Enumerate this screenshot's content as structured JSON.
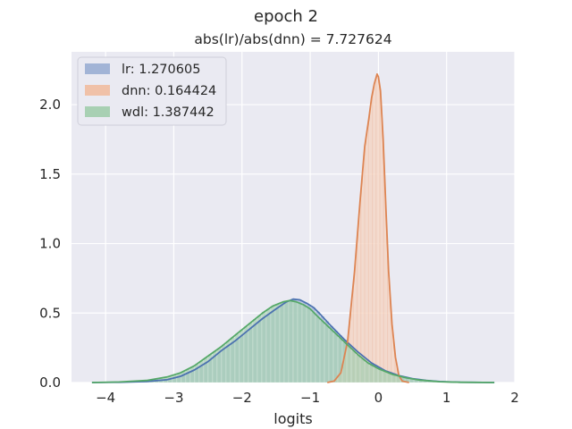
{
  "chart_data": {
    "type": "histogram",
    "title": "epoch 2",
    "subtitle": "abs(lr)/abs(dnn) = 7.727624",
    "xlabel": "logits",
    "ylabel": "",
    "xlim": [
      -4.5,
      2.0
    ],
    "ylim": [
      0,
      2.38
    ],
    "xticks": [
      -4,
      -3,
      -2,
      -1,
      0,
      1,
      2
    ],
    "xtick_labels": [
      "−4",
      "−3",
      "−2",
      "−1",
      "0",
      "1",
      "2"
    ],
    "yticks": [
      0.0,
      0.5,
      1.0,
      1.5,
      2.0
    ],
    "ytick_labels": [
      "0.0",
      "0.5",
      "1.0",
      "1.5",
      "2.0"
    ],
    "grid": true,
    "legend_position": "top-left",
    "series": [
      {
        "name": "lr: 1.270605",
        "kind": "kde",
        "color": "#4c72b0",
        "fill": "#a2b4d6",
        "points": [
          [
            -4.2,
            0.0
          ],
          [
            -3.8,
            0.002
          ],
          [
            -3.4,
            0.008
          ],
          [
            -3.1,
            0.02
          ],
          [
            -2.9,
            0.045
          ],
          [
            -2.7,
            0.09
          ],
          [
            -2.5,
            0.15
          ],
          [
            -2.3,
            0.23
          ],
          [
            -2.1,
            0.3
          ],
          [
            -1.9,
            0.38
          ],
          [
            -1.7,
            0.46
          ],
          [
            -1.5,
            0.53
          ],
          [
            -1.35,
            0.58
          ],
          [
            -1.25,
            0.6
          ],
          [
            -1.15,
            0.595
          ],
          [
            -1.05,
            0.57
          ],
          [
            -0.95,
            0.54
          ],
          [
            -0.85,
            0.49
          ],
          [
            -0.7,
            0.41
          ],
          [
            -0.5,
            0.31
          ],
          [
            -0.3,
            0.22
          ],
          [
            -0.1,
            0.14
          ],
          [
            0.1,
            0.085
          ],
          [
            0.3,
            0.05
          ],
          [
            0.5,
            0.028
          ],
          [
            0.7,
            0.015
          ],
          [
            0.9,
            0.007
          ],
          [
            1.2,
            0.002
          ],
          [
            1.7,
            0.0
          ]
        ]
      },
      {
        "name": "dnn: 0.164424",
        "kind": "kde",
        "color": "#dd8452",
        "fill": "#f0c1a8",
        "points": [
          [
            -0.75,
            0.0
          ],
          [
            -0.65,
            0.01
          ],
          [
            -0.55,
            0.07
          ],
          [
            -0.45,
            0.3
          ],
          [
            -0.35,
            0.8
          ],
          [
            -0.27,
            1.3
          ],
          [
            -0.2,
            1.7
          ],
          [
            -0.14,
            1.9
          ],
          [
            -0.1,
            2.05
          ],
          [
            -0.06,
            2.15
          ],
          [
            -0.02,
            2.22
          ],
          [
            0.0,
            2.2
          ],
          [
            0.03,
            2.1
          ],
          [
            0.07,
            1.75
          ],
          [
            0.11,
            1.25
          ],
          [
            0.15,
            0.8
          ],
          [
            0.2,
            0.42
          ],
          [
            0.25,
            0.18
          ],
          [
            0.3,
            0.05
          ],
          [
            0.35,
            0.01
          ],
          [
            0.45,
            0.0
          ]
        ]
      },
      {
        "name": "wdl: 1.387442",
        "kind": "kde",
        "color": "#55a868",
        "fill": "#a8d0b3",
        "points": [
          [
            -4.2,
            0.0
          ],
          [
            -3.8,
            0.004
          ],
          [
            -3.4,
            0.015
          ],
          [
            -3.1,
            0.04
          ],
          [
            -2.9,
            0.07
          ],
          [
            -2.7,
            0.12
          ],
          [
            -2.5,
            0.19
          ],
          [
            -2.3,
            0.26
          ],
          [
            -2.1,
            0.34
          ],
          [
            -1.9,
            0.42
          ],
          [
            -1.7,
            0.5
          ],
          [
            -1.55,
            0.55
          ],
          [
            -1.4,
            0.58
          ],
          [
            -1.3,
            0.59
          ],
          [
            -1.2,
            0.58
          ],
          [
            -1.1,
            0.56
          ],
          [
            -1.0,
            0.53
          ],
          [
            -0.9,
            0.48
          ],
          [
            -0.75,
            0.41
          ],
          [
            -0.6,
            0.34
          ],
          [
            -0.45,
            0.27
          ],
          [
            -0.3,
            0.2
          ],
          [
            -0.15,
            0.14
          ],
          [
            0.0,
            0.1
          ],
          [
            0.2,
            0.06
          ],
          [
            0.4,
            0.035
          ],
          [
            0.6,
            0.018
          ],
          [
            0.9,
            0.006
          ],
          [
            1.2,
            0.002
          ],
          [
            1.7,
            0.0
          ]
        ]
      }
    ]
  }
}
